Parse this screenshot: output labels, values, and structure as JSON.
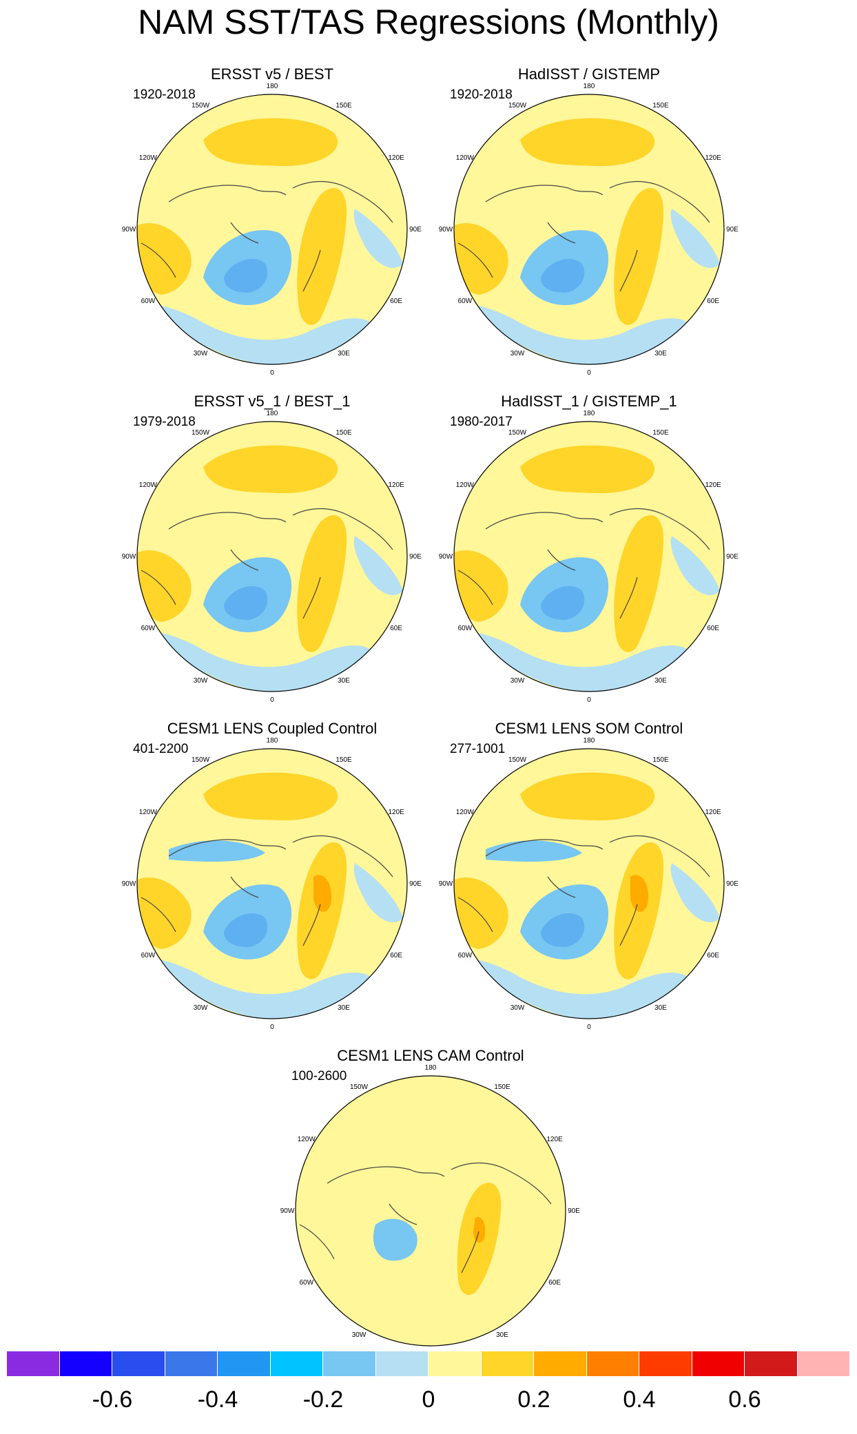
{
  "title": "NAM SST/TAS Regressions (Monthly)",
  "longitude_labels": [
    "180",
    "150E",
    "120E",
    "90E",
    "60E",
    "30E",
    "0",
    "30W",
    "60W",
    "90W",
    "120W",
    "150W"
  ],
  "colors": {
    "neg_strong": "#5fb0f0",
    "neg_mid": "#78c6f2",
    "neg_weak": "#b5dff3",
    "pos_weak": "#fff79a",
    "pos_mid": "#ffd52a",
    "pos_strong": "#ffab00",
    "pos_max": "#ff5400",
    "coast": "#444444"
  },
  "panels": [
    {
      "title": "ERSST v5 / BEST",
      "period": "1920-2018"
    },
    {
      "title": "HadISST / GISTEMP",
      "period": "1920-2018"
    },
    {
      "title": "ERSST v5_1 / BEST_1",
      "period": "1979-2018"
    },
    {
      "title": "HadISST_1 / GISTEMP_1",
      "period": "1980-2017"
    },
    {
      "title": "CESM1 LENS Coupled Control",
      "period": "401-2200"
    },
    {
      "title": "CESM1 LENS SOM Control",
      "period": "277-1001"
    },
    {
      "title": "CESM1 LENS CAM Control",
      "period": "100-2600"
    }
  ],
  "colorbar": {
    "colors": [
      "#8a2be2",
      "#1400ff",
      "#2a4df0",
      "#3a78ea",
      "#2196f3",
      "#00c3ff",
      "#78c6f2",
      "#b5dff3",
      "#fff79a",
      "#ffd52a",
      "#ffab00",
      "#ff7f00",
      "#ff3c00",
      "#f00000",
      "#d21a1a",
      "#ffb3b3"
    ],
    "labels": [
      "-0.6",
      "-0.4",
      "-0.2",
      "0",
      "0.2",
      "0.4",
      "0.6"
    ],
    "label_values": [
      -0.6,
      -0.4,
      -0.2,
      0,
      0.2,
      0.4,
      0.6
    ],
    "range": [
      -0.8,
      0.8
    ]
  }
}
